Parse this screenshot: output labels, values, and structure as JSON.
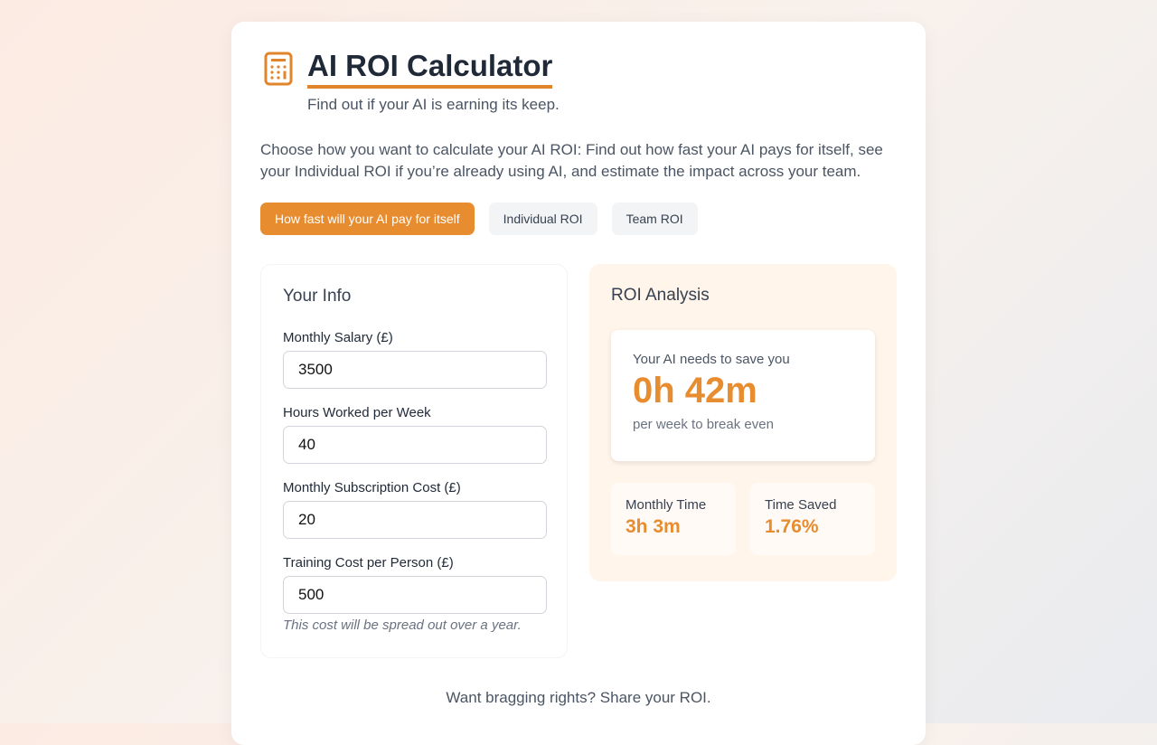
{
  "header": {
    "title": "AI ROI Calculator",
    "subtitle": "Find out if your AI is earning its keep.",
    "icon": "calculator-icon"
  },
  "description": "Choose how you want to calculate your AI ROI: Find out how fast your AI pays for itself, see your Individual ROI if you’re already using AI, and estimate the impact across your team.",
  "tabs": [
    {
      "label": "How fast will your AI pay for itself",
      "active": true
    },
    {
      "label": "Individual ROI"
    },
    {
      "label": "Team ROI"
    }
  ],
  "info": {
    "title": "Your Info",
    "fields": [
      {
        "label": "Monthly Salary (£)",
        "value": "3500"
      },
      {
        "label": "Hours Worked per Week",
        "value": "40"
      },
      {
        "label": "Monthly Subscription Cost (£)",
        "value": "20"
      },
      {
        "label": "Training Cost per Person (£)",
        "value": "500"
      }
    ],
    "note": "This cost will be spread out over a year."
  },
  "roi": {
    "title": "ROI Analysis",
    "lead": "Your AI needs to save you",
    "value": "0h 42m",
    "trail": "per week to break even",
    "stats": [
      {
        "label": "Monthly Time",
        "value": "3h 3m"
      },
      {
        "label": "Time Saved",
        "value": "1.76%"
      }
    ]
  },
  "share": "Want bragging rights? Share your ROI.",
  "colors": {
    "accent": "#e88c30"
  }
}
